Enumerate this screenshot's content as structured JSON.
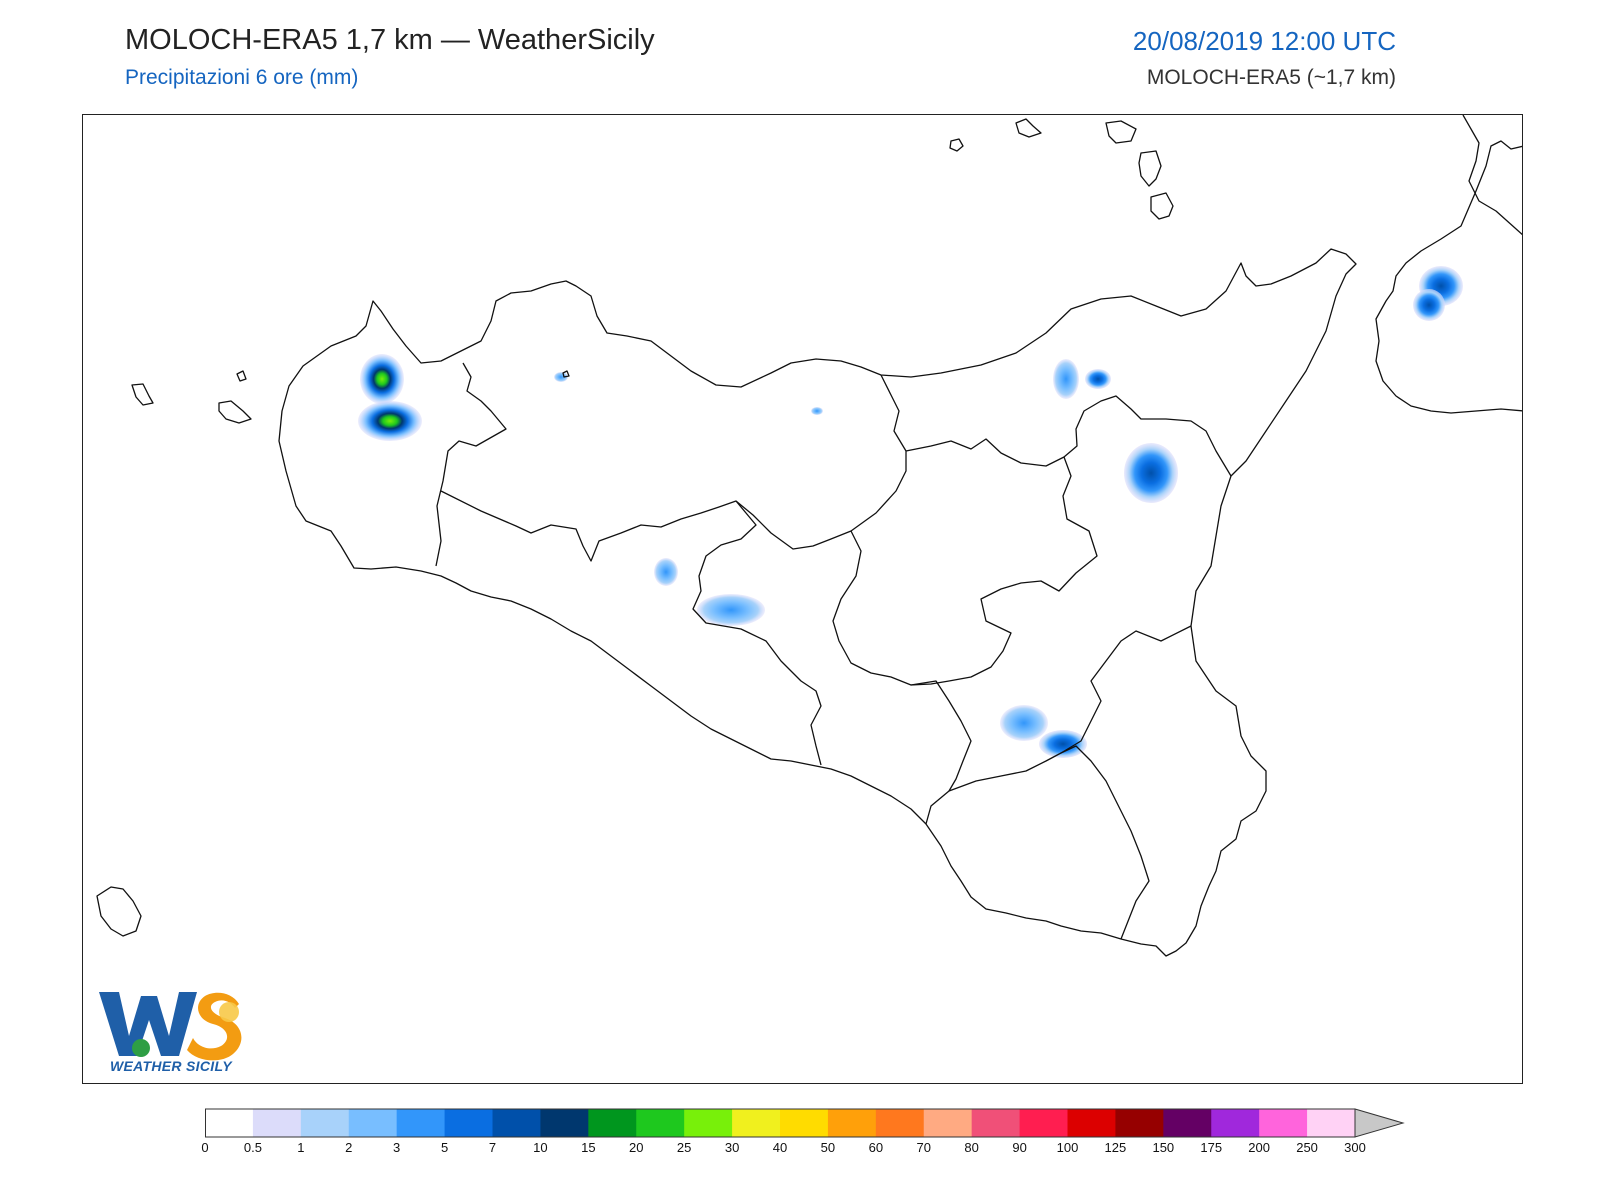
{
  "header": {
    "title": "MOLOCH-ERA5 1,7 km — WeatherSicily",
    "subtitle": "Precipitazioni 6 ore (mm)",
    "datetime": "20/08/2019 12:00 UTC",
    "model": "MOLOCH-ERA5 (~1,7 km)"
  },
  "map": {
    "region": "Sicily",
    "variable": "6-hour precipitation",
    "units": "mm"
  },
  "logo": {
    "letters": "WS",
    "text": "WEATHER SICILY",
    "colors": {
      "w": "#1f5fa8",
      "s": "#f39c12",
      "accent": "#2e9e44"
    }
  },
  "colorbar": {
    "labels": [
      "0",
      "0.5",
      "1",
      "2",
      "3",
      "5",
      "7",
      "10",
      "15",
      "20",
      "25",
      "30",
      "40",
      "50",
      "60",
      "70",
      "80",
      "90",
      "100",
      "125",
      "150",
      "175",
      "200",
      "250",
      "300"
    ],
    "colors": [
      "#ffffff",
      "#dcdcfa",
      "#a8d2fa",
      "#78beff",
      "#3296fa",
      "#0a6ee1",
      "#0050aa",
      "#00376e",
      "#00961e",
      "#1ec81e",
      "#78f00a",
      "#f0f01e",
      "#ffdc00",
      "#ffa00a",
      "#ff781e",
      "#ffaa82",
      "#f05078",
      "#ff1e50",
      "#dc0000",
      "#960000",
      "#640064",
      "#a028dc",
      "#ff64dc",
      "#ffd2f5"
    ],
    "overflow_color": "#c8c8c8"
  }
}
